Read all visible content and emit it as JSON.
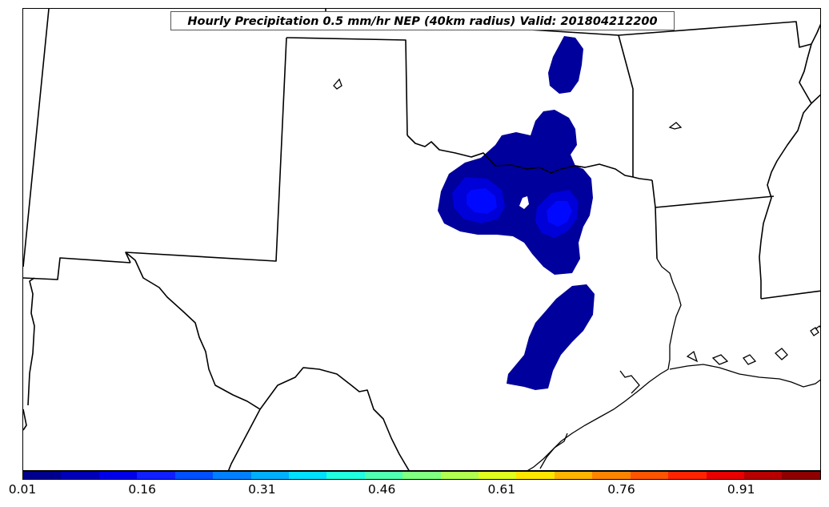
{
  "map": {
    "title": "Hourly Precipitation 0.5 mm/hr NEP (40km radius) Valid: 201804212200"
  },
  "colorbar": {
    "colors": [
      "#00008f",
      "#0000b8",
      "#0000e8",
      "#0f1fff",
      "#0050ff",
      "#0080ff",
      "#00b0ff",
      "#00e0ff",
      "#20ffdf",
      "#50ffaf",
      "#80ff80",
      "#b0ff50",
      "#dfff20",
      "#ffe600",
      "#ffb400",
      "#ff8500",
      "#ff5500",
      "#ff2400",
      "#e80000",
      "#b80000",
      "#8f0000"
    ],
    "ticks": [
      "0.01",
      "0.16",
      "0.31",
      "0.46",
      "0.61",
      "0.76",
      "0.91"
    ]
  },
  "precipitation_colors": {
    "outer": "#00009c",
    "inner": "#0000d8",
    "core": "#0008ff"
  }
}
